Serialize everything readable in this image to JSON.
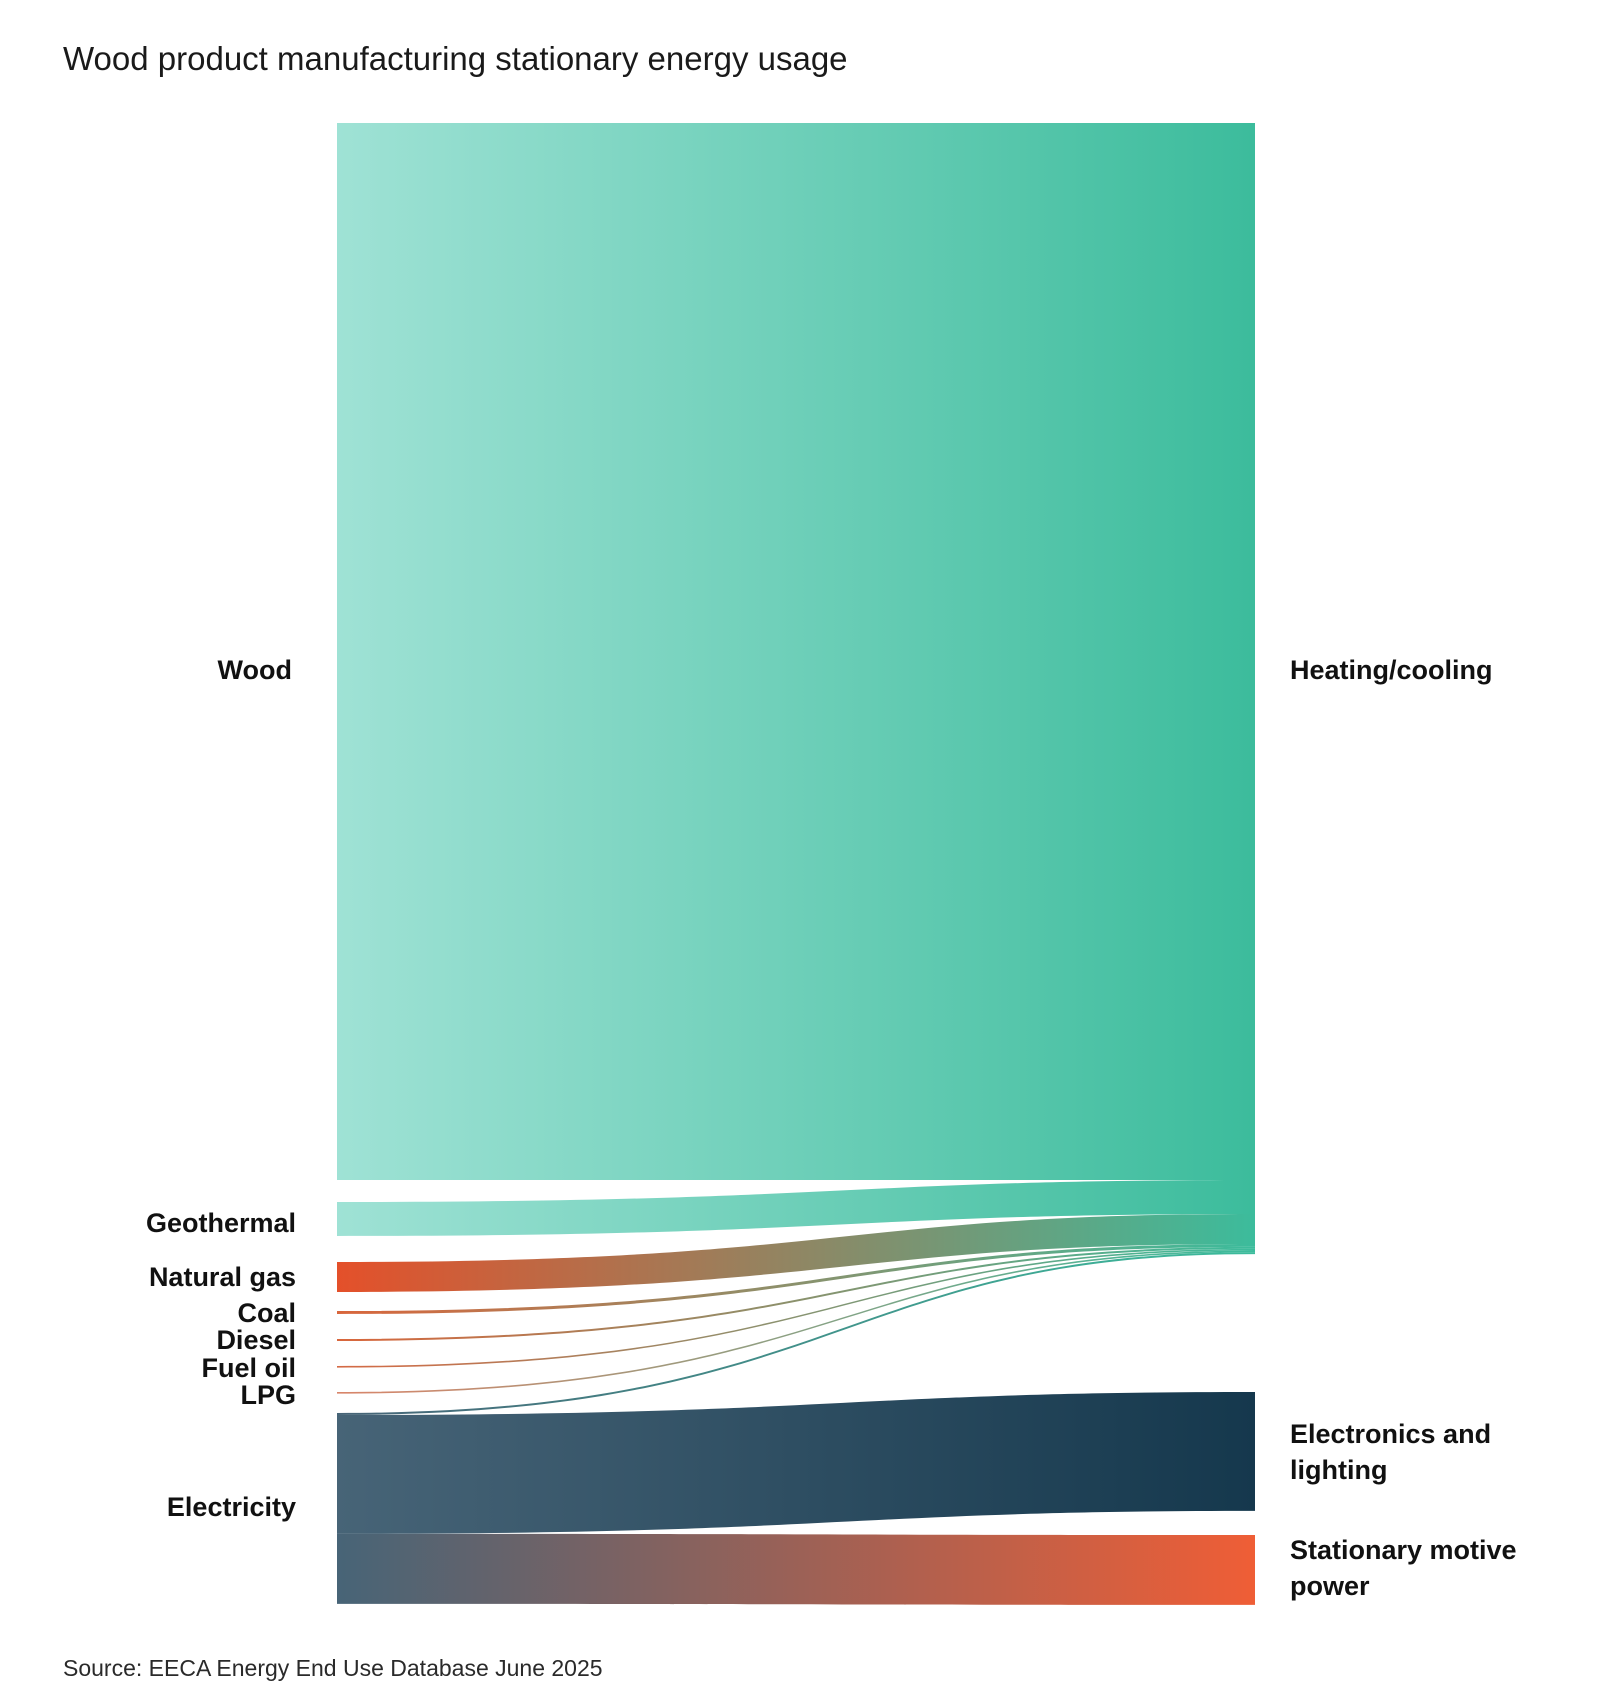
{
  "title": "Wood product manufacturing stationary energy usage",
  "source": "Source: EECA Energy End Use Database June 2025",
  "colors": {
    "wood": "#9fe2d5",
    "heating": "#3cbc9c",
    "natural_gas": "#e4502a",
    "coal": "#d9663c",
    "diesel": "#d9663c",
    "fuel_oil": "#d56a45",
    "lpg": "#d9856a",
    "electricity": "#476477",
    "electronics": "#15384d",
    "motive": "#ef5e36"
  },
  "chart_data": {
    "type": "sankey",
    "title": "Wood product manufacturing stationary energy usage",
    "units": "relative flow (approximate, read from band widths)",
    "sources": [
      {
        "id": "wood",
        "label": "Wood"
      },
      {
        "id": "geothermal",
        "label": "Geothermal"
      },
      {
        "id": "natural_gas",
        "label": "Natural gas"
      },
      {
        "id": "coal",
        "label": "Coal"
      },
      {
        "id": "diesel",
        "label": "Diesel"
      },
      {
        "id": "fuel_oil",
        "label": "Fuel oil"
      },
      {
        "id": "lpg",
        "label": "LPG"
      },
      {
        "id": "electricity",
        "label": "Electricity"
      }
    ],
    "targets": [
      {
        "id": "heating",
        "label": "Heating/cooling"
      },
      {
        "id": "electronics",
        "label": "Electronics and lighting"
      },
      {
        "id": "motive",
        "label": "Stationary motive power"
      }
    ],
    "links": [
      {
        "source": "wood",
        "target": "heating",
        "value": 1058
      },
      {
        "source": "geothermal",
        "target": "heating",
        "value": 34
      },
      {
        "source": "natural_gas",
        "target": "heating",
        "value": 30
      },
      {
        "source": "coal",
        "target": "heating",
        "value": 3
      },
      {
        "source": "diesel",
        "target": "heating",
        "value": 2
      },
      {
        "source": "fuel_oil",
        "target": "heating",
        "value": 1.5
      },
      {
        "source": "lpg",
        "target": "heating",
        "value": 1
      },
      {
        "source": "electricity",
        "target": "heating",
        "value": 2
      },
      {
        "source": "electricity",
        "target": "electronics",
        "value": 119
      },
      {
        "source": "electricity",
        "target": "motive",
        "value": 70
      }
    ]
  }
}
